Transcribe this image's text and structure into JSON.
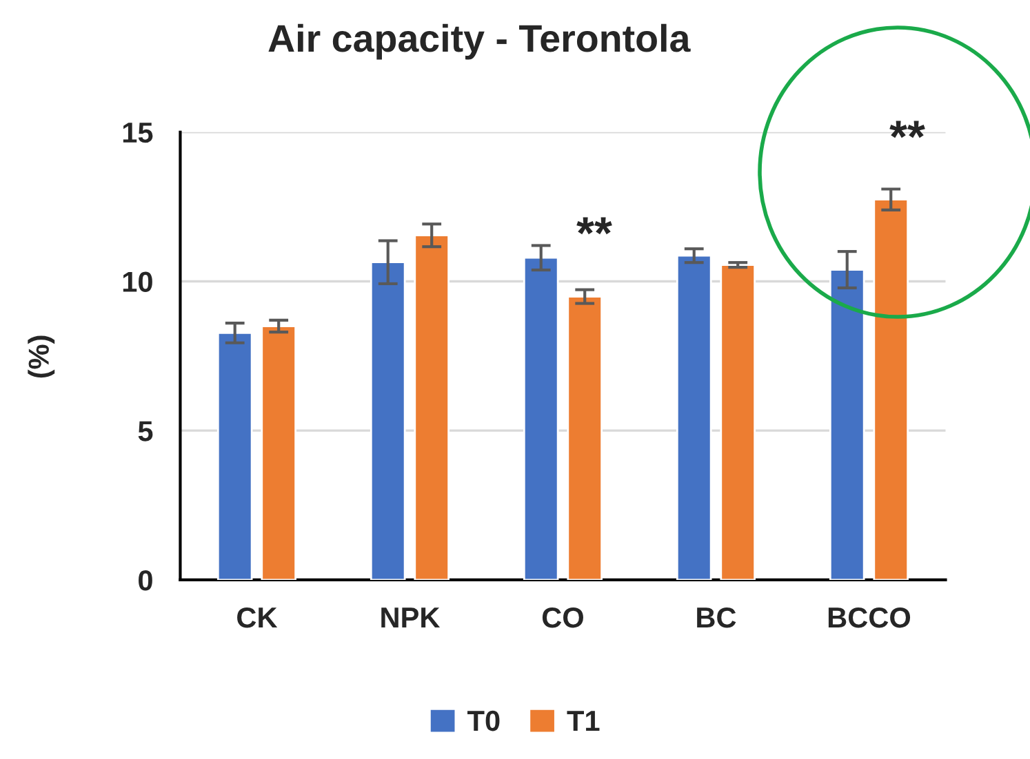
{
  "chart_data": {
    "type": "bar",
    "title": "Air capacity - Terontola",
    "ylabel": "(%)",
    "categories": [
      "CK",
      "NPK",
      "CO",
      "BC",
      "BCCO"
    ],
    "series": [
      {
        "name": "T0",
        "color": "#4472c4",
        "values": [
          8.27,
          10.64,
          10.79,
          10.86,
          10.39
        ],
        "errors": [
          0.33,
          0.72,
          0.41,
          0.23,
          0.61
        ]
      },
      {
        "name": "T1",
        "color": "#ed7d31",
        "values": [
          8.5,
          11.54,
          9.49,
          10.55,
          12.74
        ],
        "errors": [
          0.2,
          0.38,
          0.23,
          0.08,
          0.35
        ]
      }
    ],
    "annotations": [
      "**",
      "**"
    ],
    "ylim": [
      0,
      15
    ],
    "yticks": [
      0,
      5,
      10,
      15
    ],
    "grid": "y",
    "legend": "bottom"
  }
}
